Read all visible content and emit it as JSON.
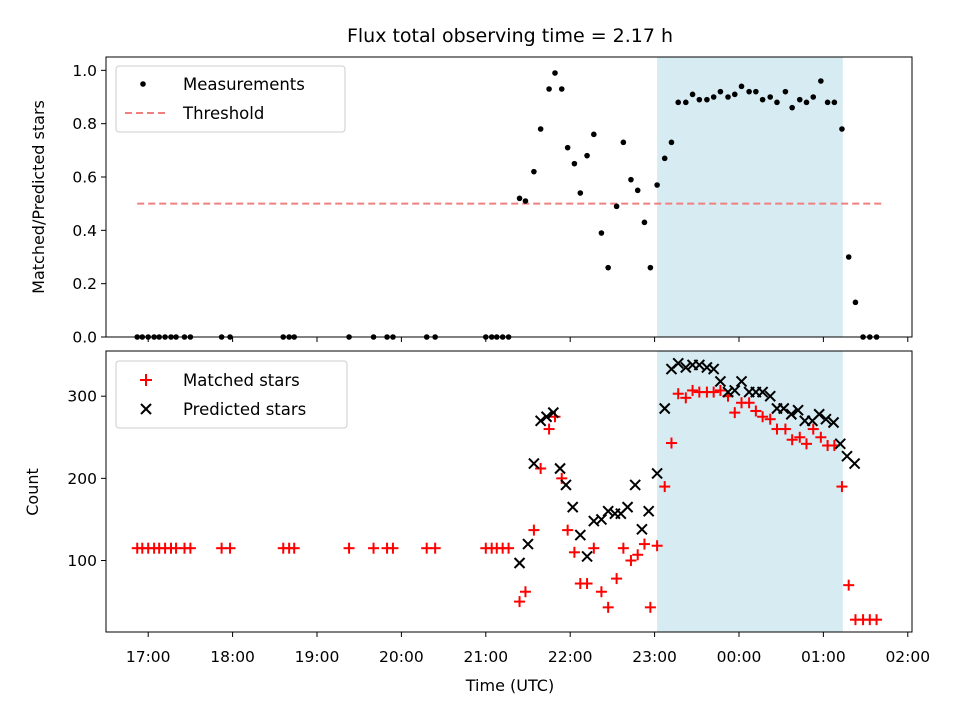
{
  "chart_data": [
    {
      "type": "scatter",
      "title": "Flux total observing time = 2.17 h",
      "xlabel": "",
      "ylabel": "Matched/Predicted stars",
      "xlim_hours": [
        16.5,
        26.05
      ],
      "ylim": [
        0,
        1.05
      ],
      "yticks": [
        "0.0",
        "0.2",
        "0.4",
        "0.6",
        "0.8",
        "1.0"
      ],
      "legend_position": "upper-left",
      "highlight_span_hours": [
        23.03,
        25.23
      ],
      "series": [
        {
          "name": "Measurements",
          "color": "#000000",
          "marker": "dot",
          "x": [
            16.87,
            16.93,
            17.0,
            17.07,
            17.13,
            17.2,
            17.27,
            17.33,
            17.43,
            17.5,
            17.87,
            17.97,
            18.6,
            18.67,
            18.73,
            19.38,
            19.67,
            19.83,
            19.9,
            20.3,
            20.4,
            21.0,
            21.07,
            21.13,
            21.2,
            21.27,
            21.4,
            21.47,
            21.57,
            21.65,
            21.75,
            21.82,
            21.9,
            21.97,
            22.05,
            22.12,
            22.2,
            22.28,
            22.37,
            22.45,
            22.55,
            22.63,
            22.72,
            22.8,
            22.88,
            22.95,
            23.03,
            23.12,
            23.2,
            23.28,
            23.37,
            23.45,
            23.53,
            23.62,
            23.7,
            23.78,
            23.87,
            23.95,
            24.03,
            24.12,
            24.2,
            24.28,
            24.37,
            24.45,
            24.55,
            24.63,
            24.72,
            24.8,
            24.88,
            24.97,
            25.05,
            25.13,
            25.22,
            25.3,
            25.38,
            25.47,
            25.55,
            25.63
          ],
          "y": [
            0,
            0,
            0,
            0,
            0,
            0,
            0,
            0,
            0,
            0,
            0,
            0,
            0,
            0,
            0,
            0,
            0,
            0,
            0,
            0,
            0,
            0,
            0,
            0,
            0,
            0,
            0.52,
            0.51,
            0.62,
            0.78,
            0.93,
            0.99,
            0.93,
            0.71,
            0.65,
            0.54,
            0.68,
            0.76,
            0.39,
            0.26,
            0.49,
            0.73,
            0.59,
            0.55,
            0.43,
            0.26,
            0.57,
            0.67,
            0.73,
            0.88,
            0.88,
            0.91,
            0.89,
            0.89,
            0.9,
            0.92,
            0.9,
            0.91,
            0.94,
            0.92,
            0.92,
            0.89,
            0.9,
            0.88,
            0.92,
            0.86,
            0.89,
            0.88,
            0.9,
            0.96,
            0.88,
            0.88,
            0.78,
            0.3,
            0.13,
            0,
            0,
            0
          ]
        },
        {
          "name": "Threshold",
          "color": "#f08080",
          "style": "dashed",
          "x": [
            16.87,
            25.72
          ],
          "y": [
            0.5,
            0.5
          ]
        }
      ]
    },
    {
      "type": "scatter",
      "title": "",
      "xlabel": "Time (UTC)",
      "ylabel": "Count",
      "xlim_hours": [
        16.5,
        26.05
      ],
      "ylim": [
        13,
        355
      ],
      "yticks": [
        "100",
        "200",
        "300"
      ],
      "xticks": [
        "17:00",
        "18:00",
        "19:00",
        "20:00",
        "21:00",
        "22:00",
        "23:00",
        "00:00",
        "01:00",
        "02:00"
      ],
      "legend_position": "upper-left",
      "highlight_span_hours": [
        23.03,
        25.23
      ],
      "series": [
        {
          "name": "Matched stars",
          "color": "#ff0000",
          "marker": "plus",
          "x": [
            16.87,
            16.93,
            17.0,
            17.07,
            17.13,
            17.2,
            17.27,
            17.33,
            17.43,
            17.5,
            17.87,
            17.97,
            18.6,
            18.67,
            18.73,
            19.38,
            19.67,
            19.83,
            19.9,
            20.3,
            20.4,
            21.0,
            21.07,
            21.13,
            21.2,
            21.27,
            21.4,
            21.47,
            21.57,
            21.65,
            21.75,
            21.82,
            21.9,
            21.97,
            22.05,
            22.12,
            22.2,
            22.28,
            22.37,
            22.45,
            22.55,
            22.63,
            22.72,
            22.8,
            22.88,
            22.95,
            23.03,
            23.12,
            23.2,
            23.28,
            23.37,
            23.45,
            23.53,
            23.62,
            23.7,
            23.78,
            23.87,
            23.95,
            24.03,
            24.12,
            24.2,
            24.28,
            24.37,
            24.45,
            24.55,
            24.63,
            24.72,
            24.8,
            24.88,
            24.97,
            25.05,
            25.13,
            25.22,
            25.3,
            25.38,
            25.47,
            25.55,
            25.63
          ],
          "y": [
            115,
            115,
            115,
            115,
            115,
            115,
            115,
            115,
            115,
            115,
            115,
            115,
            115,
            115,
            115,
            115,
            115,
            115,
            115,
            115,
            115,
            115,
            115,
            115,
            115,
            115,
            50,
            62,
            137,
            212,
            260,
            275,
            200,
            137,
            110,
            72,
            72,
            115,
            62,
            43,
            78,
            115,
            100,
            107,
            120,
            43,
            118,
            190,
            243,
            303,
            298,
            307,
            305,
            305,
            305,
            307,
            300,
            280,
            292,
            292,
            282,
            275,
            272,
            260,
            260,
            247,
            250,
            242,
            260,
            250,
            240,
            240,
            190,
            70,
            28,
            28,
            28,
            28
          ]
        },
        {
          "name": "Predicted stars",
          "color": "#000000",
          "marker": "x",
          "x": [
            21.4,
            21.5,
            21.57,
            21.65,
            21.72,
            21.8,
            21.88,
            21.95,
            22.03,
            22.12,
            22.2,
            22.28,
            22.37,
            22.45,
            22.53,
            22.6,
            22.68,
            22.77,
            22.85,
            22.93,
            23.03,
            23.12,
            23.2,
            23.28,
            23.37,
            23.45,
            23.53,
            23.62,
            23.7,
            23.78,
            23.87,
            23.95,
            24.03,
            24.12,
            24.2,
            24.28,
            24.37,
            24.45,
            24.53,
            24.62,
            24.7,
            24.78,
            24.87,
            24.95,
            25.03,
            25.12,
            25.2,
            25.28,
            25.37
          ],
          "y": [
            97,
            120,
            218,
            270,
            275,
            280,
            212,
            192,
            165,
            131,
            105,
            148,
            150,
            160,
            157,
            157,
            165,
            192,
            138,
            160,
            206,
            285,
            333,
            340,
            335,
            338,
            338,
            335,
            333,
            318,
            305,
            307,
            318,
            305,
            305,
            305,
            300,
            285,
            285,
            278,
            283,
            270,
            270,
            278,
            272,
            268,
            242,
            227,
            218
          ]
        }
      ]
    }
  ]
}
